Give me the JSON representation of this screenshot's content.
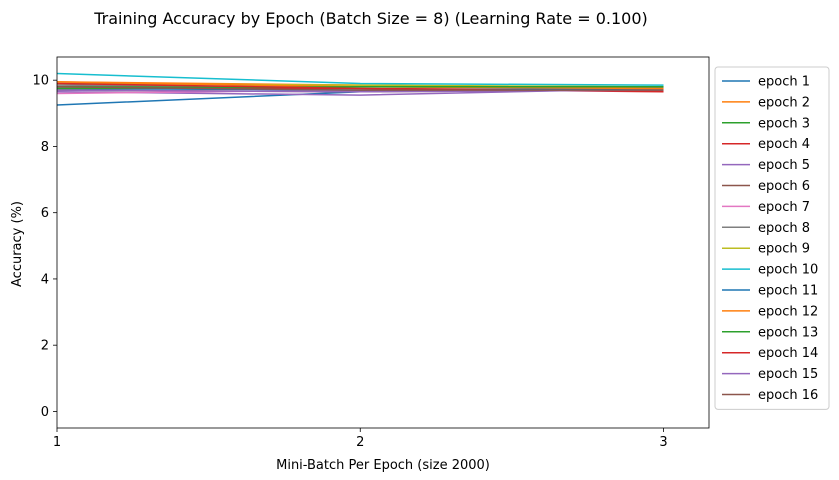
{
  "chart_data": {
    "type": "line",
    "title": "Training Accuracy by Epoch (Batch Size = 8) (Learning Rate = 0.100)",
    "xlabel": "Mini-Batch Per Epoch (size 2000)",
    "ylabel": "Accuracy (%)",
    "x": [
      1,
      2,
      3
    ],
    "xlim": [
      1,
      3.15
    ],
    "ylim": [
      -0.5,
      10.7
    ],
    "xticks": [
      1,
      2,
      3
    ],
    "yticks": [
      0,
      2,
      4,
      6,
      8,
      10
    ],
    "grid": false,
    "legend_position": "outside-right",
    "series": [
      {
        "name": "epoch 1",
        "color": "#1f77b4",
        "values": [
          9.25,
          9.65,
          9.8
        ]
      },
      {
        "name": "epoch 2",
        "color": "#ff7f0e",
        "values": [
          9.95,
          9.85,
          9.75
        ]
      },
      {
        "name": "epoch 3",
        "color": "#2ca02c",
        "values": [
          9.8,
          9.8,
          9.8
        ]
      },
      {
        "name": "epoch 4",
        "color": "#d62728",
        "values": [
          9.75,
          9.75,
          9.7
        ]
      },
      {
        "name": "epoch 5",
        "color": "#9467bd",
        "values": [
          9.65,
          9.55,
          9.75
        ]
      },
      {
        "name": "epoch 6",
        "color": "#8c564b",
        "values": [
          9.7,
          9.65,
          9.7
        ]
      },
      {
        "name": "epoch 7",
        "color": "#e377c2",
        "values": [
          9.6,
          9.7,
          9.75
        ]
      },
      {
        "name": "epoch 8",
        "color": "#7f7f7f",
        "values": [
          9.85,
          9.8,
          9.75
        ]
      },
      {
        "name": "epoch 9",
        "color": "#bcbd22",
        "values": [
          9.9,
          9.85,
          9.8
        ]
      },
      {
        "name": "epoch 10",
        "color": "#17becf",
        "values": [
          10.2,
          9.9,
          9.85
        ]
      },
      {
        "name": "epoch 11",
        "color": "#1f77b4",
        "values": [
          9.75,
          9.7,
          9.75
        ]
      },
      {
        "name": "epoch 12",
        "color": "#ff7f0e",
        "values": [
          9.95,
          9.8,
          9.75
        ]
      },
      {
        "name": "epoch 13",
        "color": "#2ca02c",
        "values": [
          9.75,
          9.8,
          9.8
        ]
      },
      {
        "name": "epoch 14",
        "color": "#d62728",
        "values": [
          9.9,
          9.75,
          9.65
        ]
      },
      {
        "name": "epoch 15",
        "color": "#9467bd",
        "values": [
          9.7,
          9.65,
          9.7
        ]
      },
      {
        "name": "epoch 16",
        "color": "#8c564b",
        "values": [
          9.8,
          9.7,
          9.7
        ]
      }
    ]
  }
}
